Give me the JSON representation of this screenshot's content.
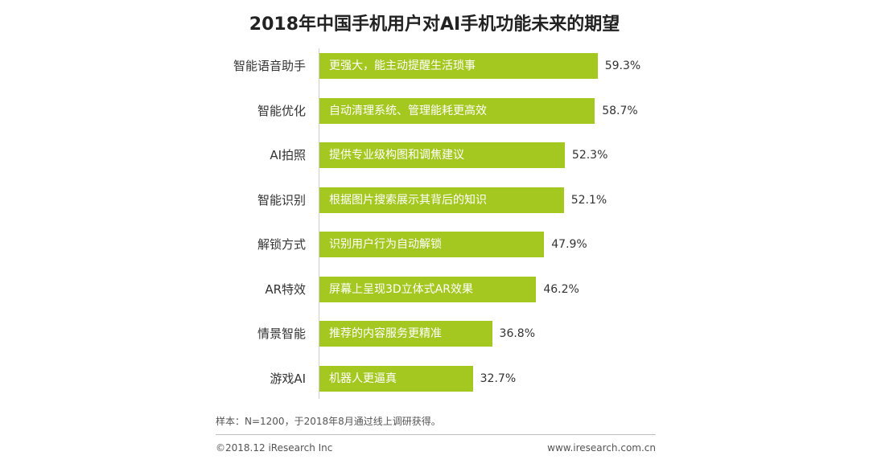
{
  "chart_data": {
    "type": "bar",
    "orientation": "horizontal",
    "title": "2018年中国手机用户对AI手机功能未来的期望",
    "categories": [
      "智能语音助手",
      "智能优化",
      "AI拍照",
      "智能识别",
      "解锁方式",
      "AR特效",
      "情景智能",
      "游戏AI"
    ],
    "bar_texts": [
      "更强大，能主动提醒生活琐事",
      "自动清理系统、管理能耗更高效",
      "提供专业级构图和调焦建议",
      "根据图片搜索展示其背后的知识",
      "识别用户行为自动解锁",
      "屏幕上呈现3D立体式AR效果",
      "推荐的内容服务更精准",
      "机器人更逼真"
    ],
    "values": [
      59.3,
      58.7,
      52.3,
      52.1,
      47.9,
      46.2,
      36.8,
      32.7
    ],
    "value_labels": [
      "59.3%",
      "58.7%",
      "52.3%",
      "52.1%",
      "47.9%",
      "46.2%",
      "36.8%",
      "32.7%"
    ],
    "unit": "%",
    "bar_color": "#a5c820",
    "grid": false,
    "legend": "none"
  },
  "footer": {
    "note": "样本：N=1200，于2018年8月通过线上调研获得。",
    "copyright": "©2018.12 iResearch Inc",
    "website": "www.iresearch.com.cn"
  }
}
